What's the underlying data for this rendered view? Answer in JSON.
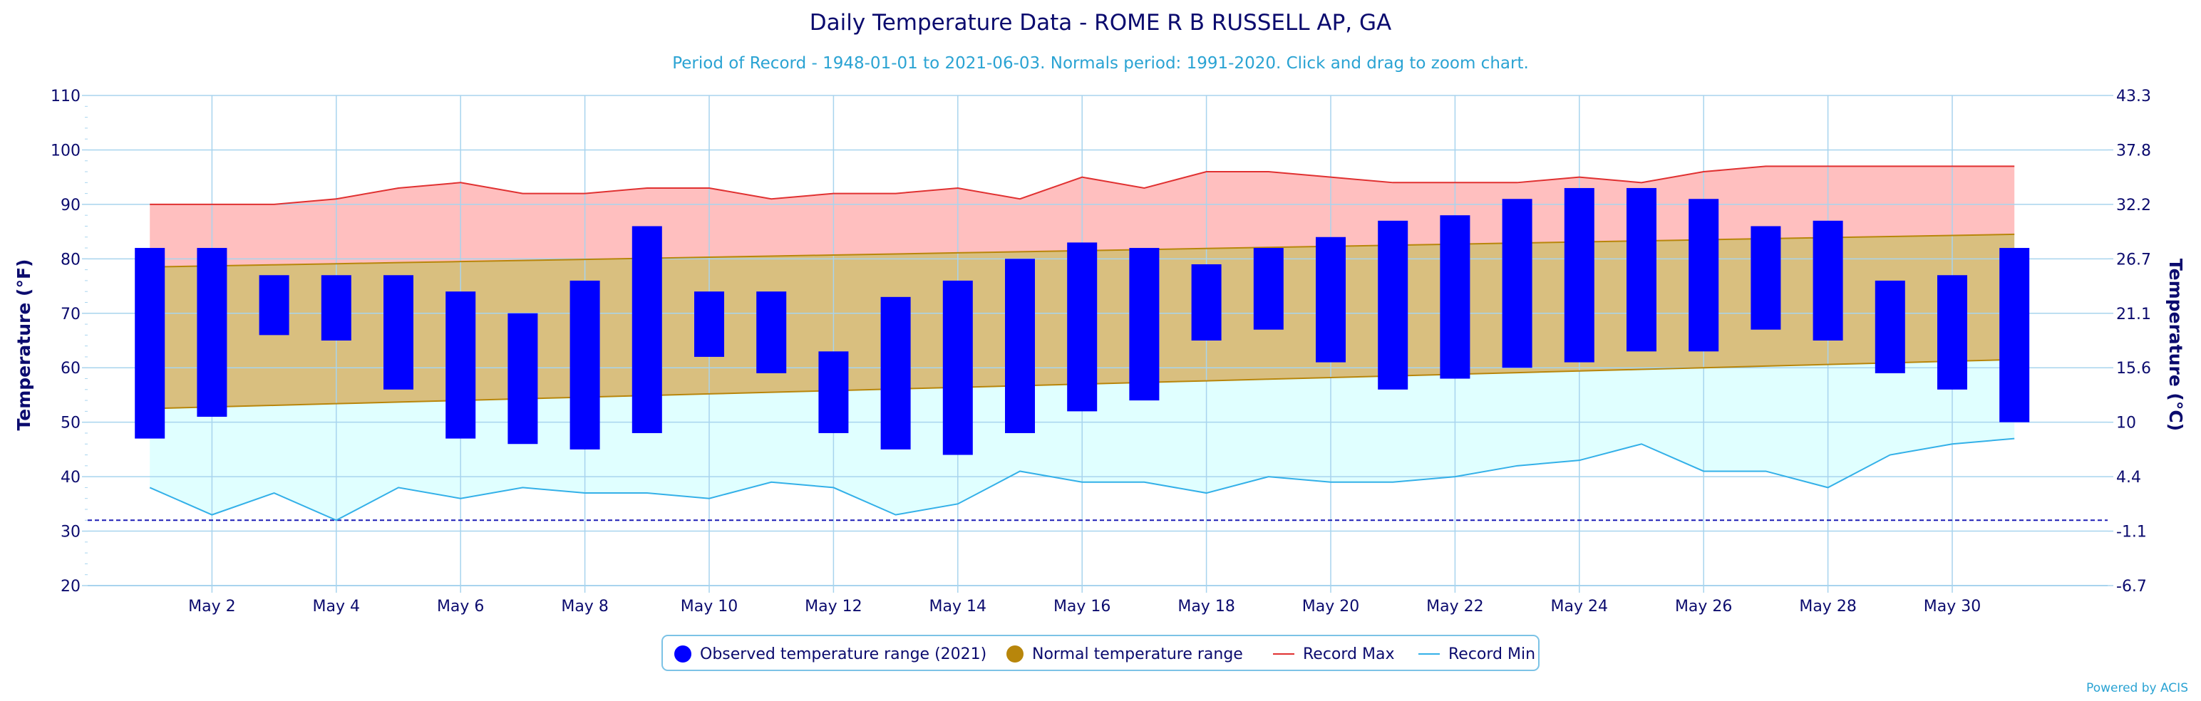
{
  "title": "Daily Temperature Data - ROME R B RUSSELL AP, GA",
  "subtitle": "Period of Record - 1948-01-01 to 2021-06-03. Normals period: 1991-2020. Click and drag to zoom chart.",
  "credit": "Powered by ACIS",
  "colors": {
    "observed": "#0000ff",
    "normal_fill": "#d9bf7f",
    "normal_line": "#b8860b",
    "record_max_fill": "#ffbfbf",
    "record_max_line": "#e03131",
    "record_min_fill": "#e0ffff",
    "record_min_line": "#33b0e8",
    "grid": "#a8d4ee",
    "axis_text": "#0b0b6e",
    "freeze_line": "#1c1cb5"
  },
  "legend": [
    {
      "label": "Observed temperature range (2021)",
      "marker": "dot",
      "color": "#0000ff"
    },
    {
      "label": "Normal temperature range",
      "marker": "dot",
      "color": "#b8860b"
    },
    {
      "label": "Record Max",
      "marker": "line",
      "color": "#e03131"
    },
    {
      "label": "Record Min",
      "marker": "line",
      "color": "#33b0e8"
    }
  ],
  "chart_data": {
    "type": "bar",
    "title": "Daily Temperature Data - ROME R B RUSSELL AP, GA",
    "subtitle": "Period of Record - 1948-01-01 to 2021-06-03. Normals period: 1991-2020. Click and drag to zoom chart.",
    "xlabel": "",
    "ylabel": "Temperature (°F)",
    "ylabel_right": "Temperature (°C)",
    "ylim": [
      20,
      110
    ],
    "yticks": [
      20,
      30,
      40,
      50,
      60,
      70,
      80,
      90,
      100,
      110
    ],
    "yticks_right": [
      "-6.7",
      "-1.1",
      "4.4",
      "10",
      "15.6",
      "21.1",
      "26.7",
      "32.2",
      "37.8",
      "43.3"
    ],
    "xtick_labels": [
      "May 2",
      "May 4",
      "May 6",
      "May 8",
      "May 10",
      "May 12",
      "May 14",
      "May 16",
      "May 18",
      "May 20",
      "May 22",
      "May 24",
      "May 26",
      "May 28",
      "May 30"
    ],
    "days": [
      1,
      2,
      3,
      4,
      5,
      6,
      7,
      8,
      9,
      10,
      11,
      12,
      13,
      14,
      15,
      16,
      17,
      18,
      19,
      20,
      21,
      22,
      23,
      24,
      25,
      26,
      27,
      28,
      29,
      30,
      31
    ],
    "freeze_line": 32,
    "grid": true,
    "legend_position": "bottom",
    "series": [
      {
        "name": "Observed temperature range (2021)",
        "low": [
          47,
          51,
          66,
          65,
          56,
          47,
          46,
          45,
          48,
          62,
          59,
          48,
          45,
          44,
          48,
          52,
          54,
          65,
          67,
          61,
          56,
          58,
          60,
          61,
          63,
          63,
          67,
          65,
          59,
          56,
          50
        ],
        "high": [
          82,
          82,
          77,
          77,
          77,
          74,
          70,
          76,
          86,
          74,
          74,
          63,
          73,
          76,
          80,
          83,
          82,
          79,
          82,
          84,
          87,
          88,
          91,
          93,
          93,
          91,
          86,
          87,
          76,
          77,
          82
        ]
      },
      {
        "name": "Normal temperature range",
        "low": [
          52.5,
          52.8,
          53.1,
          53.4,
          53.7,
          54.0,
          54.3,
          54.6,
          54.9,
          55.2,
          55.5,
          55.8,
          56.1,
          56.4,
          56.7,
          57.0,
          57.3,
          57.6,
          57.9,
          58.2,
          58.5,
          58.8,
          59.1,
          59.4,
          59.7,
          60.0,
          60.3,
          60.6,
          60.9,
          61.2,
          61.5
        ],
        "high": [
          78.5,
          78.7,
          78.9,
          79.1,
          79.3,
          79.5,
          79.7,
          79.9,
          80.1,
          80.3,
          80.5,
          80.7,
          80.9,
          81.1,
          81.3,
          81.5,
          81.7,
          81.9,
          82.1,
          82.3,
          82.5,
          82.7,
          82.9,
          83.1,
          83.3,
          83.5,
          83.7,
          83.9,
          84.1,
          84.3,
          84.5
        ]
      },
      {
        "name": "Record Max",
        "values": [
          90,
          90,
          90,
          91,
          93,
          94,
          92,
          92,
          93,
          93,
          91,
          92,
          92,
          93,
          91,
          95,
          93,
          96,
          96,
          95,
          94,
          94,
          94,
          95,
          94,
          96,
          97,
          97,
          97,
          97,
          97
        ]
      },
      {
        "name": "Record Min",
        "values": [
          38,
          33,
          37,
          32,
          38,
          36,
          38,
          37,
          37,
          36,
          39,
          38,
          33,
          35,
          41,
          39,
          39,
          37,
          40,
          39,
          39,
          40,
          42,
          43,
          46,
          41,
          41,
          38,
          44,
          46,
          47
        ]
      }
    ]
  }
}
